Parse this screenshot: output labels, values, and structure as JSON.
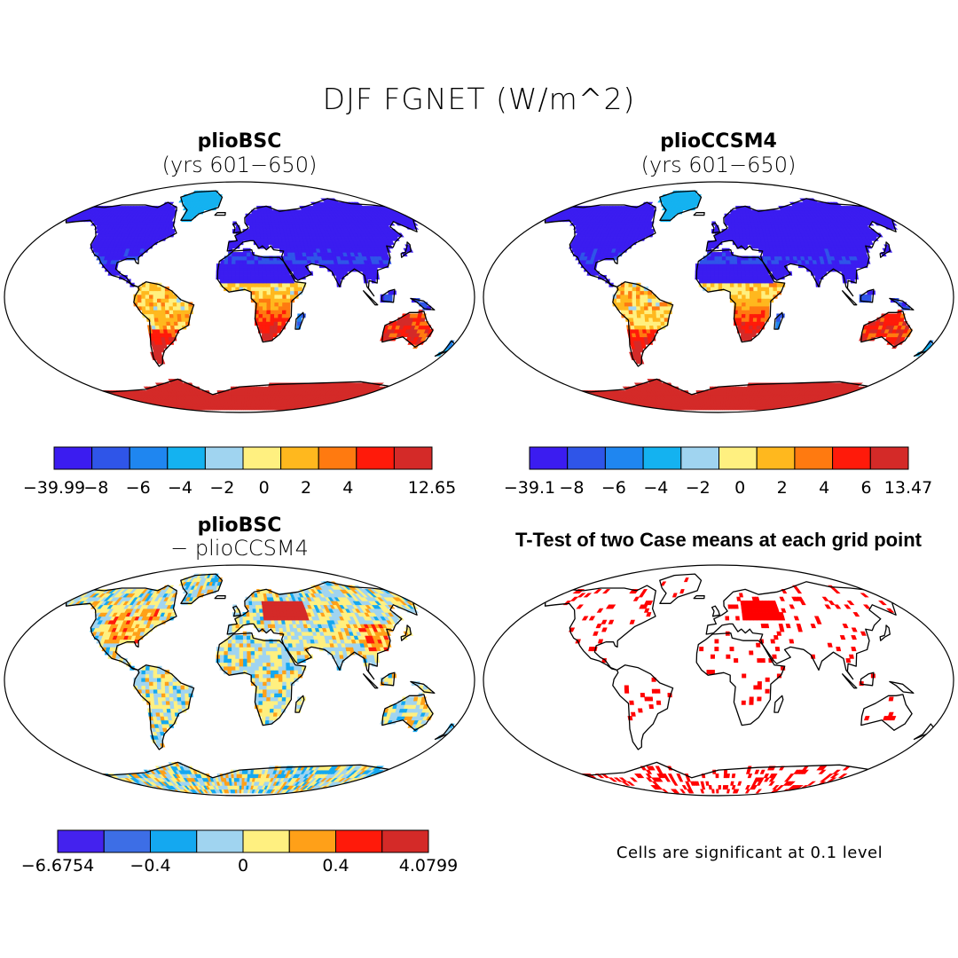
{
  "figure": {
    "title": "DJF FGNET (W/m^2)"
  },
  "panels": [
    {
      "id": "plioBSC",
      "title": "plioBSC",
      "subtitle": "(yrs 601−650)",
      "colorbar": {
        "colors": [
          "#3b1cf0",
          "#2f55e8",
          "#1f86f0",
          "#14b2f0",
          "#a0d4f0",
          "#fff080",
          "#ffb81e",
          "#ff7a10",
          "#ff1a0a",
          "#d42a28"
        ],
        "labels": [
          "−39.99",
          "−8",
          "−6",
          "−4",
          "−2",
          "0",
          "2",
          "4",
          "",
          "12.65"
        ]
      }
    },
    {
      "id": "plioCCSM4",
      "title": "plioCCSM4",
      "subtitle": "(yrs 601−650)",
      "colorbar": {
        "colors": [
          "#3b1cf0",
          "#2f55e8",
          "#1f86f0",
          "#14b2f0",
          "#a0d4f0",
          "#fff080",
          "#ffb81e",
          "#ff7a10",
          "#ff1a0a",
          "#d42a28"
        ],
        "labels": [
          "−39.1",
          "−8",
          "−6",
          "−4",
          "−2",
          "0",
          "2",
          "4",
          "6",
          "13.47"
        ]
      }
    },
    {
      "id": "diff",
      "title": "plioBSC",
      "subtitle": "− plioCCSM4",
      "colorbar": {
        "colors": [
          "#4422ee",
          "#3d6ee6",
          "#14a8f0",
          "#a0d4f0",
          "#fff080",
          "#ffa018",
          "#ff1a0a",
          "#d42a28"
        ],
        "labels": [
          "−6.6754",
          "",
          "−0.4",
          "",
          "0",
          "",
          "0.4",
          "",
          "4.0799"
        ]
      }
    },
    {
      "id": "ttest",
      "title": "T-Test of two Case means at each grid point",
      "note": "Cells are significant at 0.1 level",
      "significance_color": "#ff0000"
    }
  ]
}
